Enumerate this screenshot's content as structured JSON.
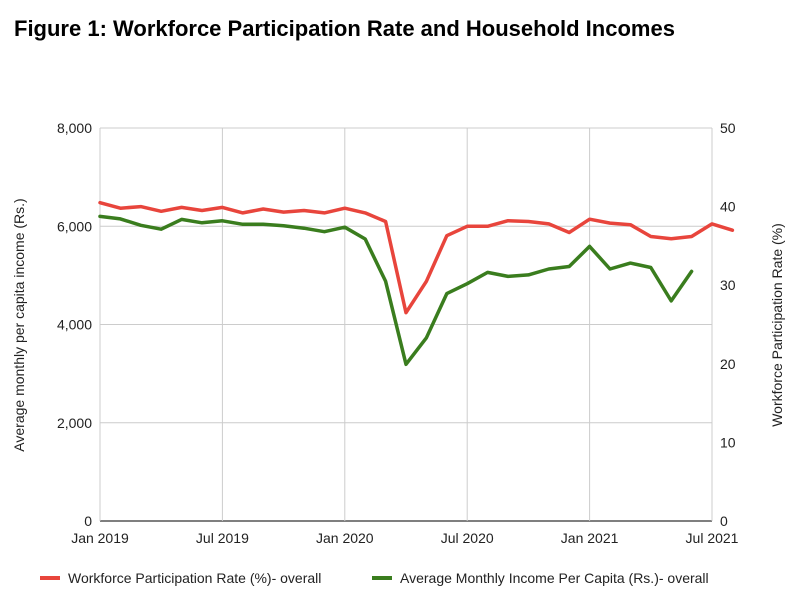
{
  "figure": {
    "title": "Figure 1: Workforce Participation Rate and Household Incomes"
  },
  "chart_data": {
    "type": "line",
    "title": "Figure 1: Workforce Participation Rate and Household Incomes",
    "xlabel": "",
    "x_tick_labels": [
      "Jan 2019",
      "Jul 2019",
      "Jan 2020",
      "Jul 2020",
      "Jan 2021",
      "Jul 2021"
    ],
    "x_tick_month_index": [
      0,
      6,
      12,
      18,
      24,
      30
    ],
    "x": [
      "Jan 2019",
      "Feb 2019",
      "Mar 2019",
      "Apr 2019",
      "May 2019",
      "Jun 2019",
      "Jul 2019",
      "Aug 2019",
      "Sep 2019",
      "Oct 2019",
      "Nov 2019",
      "Dec 2019",
      "Jan 2020",
      "Feb 2020",
      "Mar 2020",
      "Apr 2020",
      "May 2020",
      "Jun 2020",
      "Jul 2020",
      "Aug 2020",
      "Sep 2020",
      "Oct 2020",
      "Nov 2020",
      "Dec 2020",
      "Jan 2021",
      "Feb 2021",
      "Mar 2021",
      "Apr 2021",
      "May 2021",
      "Jun 2021",
      "Jul 2021",
      "Aug 2021"
    ],
    "y_left": {
      "label": "Average monthly per capita income (Rs.)",
      "ylim": [
        0,
        8000
      ],
      "ticks": [
        0,
        2000,
        4000,
        6000,
        8000
      ],
      "tick_labels": [
        "0",
        "2,000",
        "4,000",
        "6,000",
        "8,000"
      ]
    },
    "y_right": {
      "label": "Workforce Participation Rate (%)",
      "ylim": [
        0,
        50
      ],
      "ticks": [
        0,
        10,
        20,
        30,
        40,
        50
      ],
      "tick_labels": [
        "0",
        "10",
        "20",
        "30",
        "40",
        "50"
      ]
    },
    "grid": true,
    "legend_position": "bottom",
    "series": [
      {
        "name": "Workforce Participation Rate (%)- overall",
        "axis": "right",
        "color": "#e8453c",
        "values": [
          40.5,
          39.8,
          40.0,
          39.4,
          39.9,
          39.5,
          39.9,
          39.2,
          39.7,
          39.3,
          39.5,
          39.2,
          39.8,
          39.2,
          38.1,
          26.5,
          30.5,
          36.3,
          37.5,
          37.5,
          38.2,
          38.1,
          37.8,
          36.7,
          38.4,
          37.9,
          37.7,
          36.2,
          35.9,
          36.2,
          37.8,
          37.0
        ]
      },
      {
        "name": "Average Monthly Income Per Capita (Rs.)- overall",
        "axis": "left",
        "color": "#3a7d1e",
        "values": [
          6200,
          6150,
          6020,
          5940,
          6140,
          6070,
          6110,
          6040,
          6040,
          6010,
          5960,
          5890,
          5980,
          5740,
          4880,
          3190,
          3730,
          4630,
          4830,
          5060,
          4980,
          5010,
          5130,
          5180,
          5590,
          5130,
          5250,
          5160,
          4480,
          5080,
          null,
          null
        ]
      }
    ]
  }
}
